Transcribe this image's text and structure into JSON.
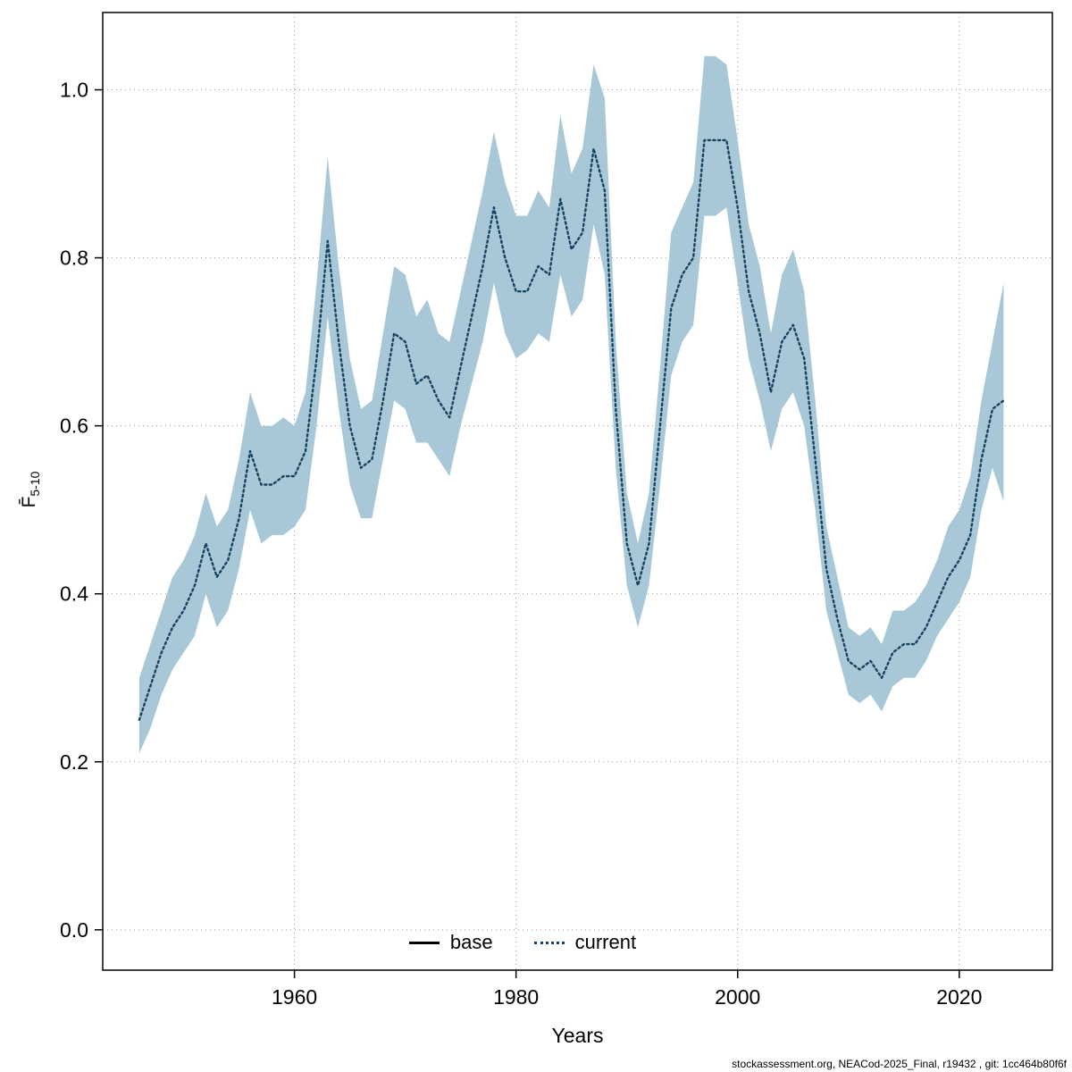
{
  "footer": {
    "text": "stockassessment.org, NEACod-2025_Final, r19432 , git: 1cc464b80f6f"
  },
  "chart_data": {
    "type": "line",
    "title": "",
    "xlabel": "Years",
    "ylabel_main": "F̄",
    "ylabel_sub": "5-10",
    "xlim": [
      1942.7,
      2028.4
    ],
    "ylim": [
      -0.048,
      1.092
    ],
    "xticks": [
      1960,
      1980,
      2000,
      2020
    ],
    "xtick_labels": [
      "1960",
      "1980",
      "2000",
      "2020"
    ],
    "yticks": [
      0,
      0.2,
      0.4,
      0.6,
      0.8,
      1.0
    ],
    "ytick_labels": [
      "0.0",
      "0.2",
      "0.4",
      "0.6",
      "0.8",
      "1.0"
    ],
    "grid": true,
    "legend_position": "bottom-center-inside",
    "colors": {
      "band": "#A8C8D8",
      "current": "#17425E",
      "base": "#000000",
      "grid": "#9A9A9A",
      "axis": "#000000"
    },
    "x": [
      1946,
      1947,
      1948,
      1949,
      1950,
      1951,
      1952,
      1953,
      1954,
      1955,
      1956,
      1957,
      1958,
      1959,
      1960,
      1961,
      1962,
      1963,
      1964,
      1965,
      1966,
      1967,
      1968,
      1969,
      1970,
      1971,
      1972,
      1973,
      1974,
      1975,
      1976,
      1977,
      1978,
      1979,
      1980,
      1981,
      1982,
      1983,
      1984,
      1985,
      1986,
      1987,
      1988,
      1989,
      1990,
      1991,
      1992,
      1993,
      1994,
      1995,
      1996,
      1997,
      1998,
      1999,
      2000,
      2001,
      2002,
      2003,
      2004,
      2005,
      2006,
      2007,
      2008,
      2009,
      2010,
      2011,
      2012,
      2013,
      2014,
      2015,
      2016,
      2017,
      2018,
      2019,
      2020,
      2021,
      2022,
      2023,
      2024
    ],
    "series": [
      {
        "name": "current",
        "style": "dotted",
        "values": [
          0.25,
          0.29,
          0.33,
          0.36,
          0.38,
          0.41,
          0.46,
          0.42,
          0.44,
          0.49,
          0.57,
          0.53,
          0.53,
          0.54,
          0.54,
          0.57,
          0.68,
          0.82,
          0.7,
          0.6,
          0.55,
          0.56,
          0.63,
          0.71,
          0.7,
          0.65,
          0.66,
          0.63,
          0.61,
          0.67,
          0.73,
          0.79,
          0.86,
          0.8,
          0.76,
          0.76,
          0.79,
          0.78,
          0.87,
          0.81,
          0.83,
          0.93,
          0.88,
          0.62,
          0.46,
          0.41,
          0.46,
          0.6,
          0.74,
          0.78,
          0.8,
          0.94,
          0.94,
          0.94,
          0.86,
          0.76,
          0.71,
          0.64,
          0.7,
          0.72,
          0.68,
          0.56,
          0.43,
          0.37,
          0.32,
          0.31,
          0.32,
          0.3,
          0.33,
          0.34,
          0.34,
          0.36,
          0.39,
          0.42,
          0.44,
          0.47,
          0.56,
          0.62,
          0.63
        ]
      }
    ],
    "band": {
      "series": "current",
      "lower": [
        0.21,
        0.24,
        0.28,
        0.31,
        0.33,
        0.35,
        0.4,
        0.36,
        0.38,
        0.43,
        0.5,
        0.46,
        0.47,
        0.47,
        0.48,
        0.5,
        0.6,
        0.73,
        0.62,
        0.53,
        0.49,
        0.49,
        0.56,
        0.63,
        0.62,
        0.58,
        0.58,
        0.56,
        0.54,
        0.6,
        0.65,
        0.7,
        0.77,
        0.71,
        0.68,
        0.69,
        0.71,
        0.7,
        0.78,
        0.73,
        0.75,
        0.84,
        0.78,
        0.55,
        0.41,
        0.36,
        0.41,
        0.53,
        0.66,
        0.7,
        0.72,
        0.85,
        0.85,
        0.86,
        0.77,
        0.68,
        0.63,
        0.57,
        0.62,
        0.64,
        0.6,
        0.5,
        0.38,
        0.33,
        0.28,
        0.27,
        0.28,
        0.26,
        0.29,
        0.3,
        0.3,
        0.32,
        0.35,
        0.37,
        0.39,
        0.42,
        0.5,
        0.55,
        0.51
      ],
      "upper": [
        0.3,
        0.34,
        0.38,
        0.42,
        0.44,
        0.47,
        0.52,
        0.48,
        0.5,
        0.56,
        0.64,
        0.6,
        0.6,
        0.61,
        0.6,
        0.64,
        0.77,
        0.92,
        0.79,
        0.68,
        0.62,
        0.63,
        0.71,
        0.79,
        0.78,
        0.73,
        0.75,
        0.71,
        0.7,
        0.76,
        0.82,
        0.88,
        0.95,
        0.89,
        0.85,
        0.85,
        0.88,
        0.86,
        0.97,
        0.9,
        0.93,
        1.03,
        0.99,
        0.7,
        0.52,
        0.46,
        0.52,
        0.67,
        0.83,
        0.86,
        0.89,
        1.04,
        1.04,
        1.03,
        0.94,
        0.84,
        0.79,
        0.71,
        0.78,
        0.81,
        0.76,
        0.63,
        0.48,
        0.42,
        0.36,
        0.35,
        0.36,
        0.34,
        0.38,
        0.38,
        0.39,
        0.41,
        0.44,
        0.48,
        0.5,
        0.54,
        0.63,
        0.7,
        0.77
      ]
    },
    "legend": [
      {
        "label": "base",
        "style": "solid",
        "color": "#000000"
      },
      {
        "label": "current",
        "style": "dotted",
        "color": "#17425E"
      }
    ]
  }
}
